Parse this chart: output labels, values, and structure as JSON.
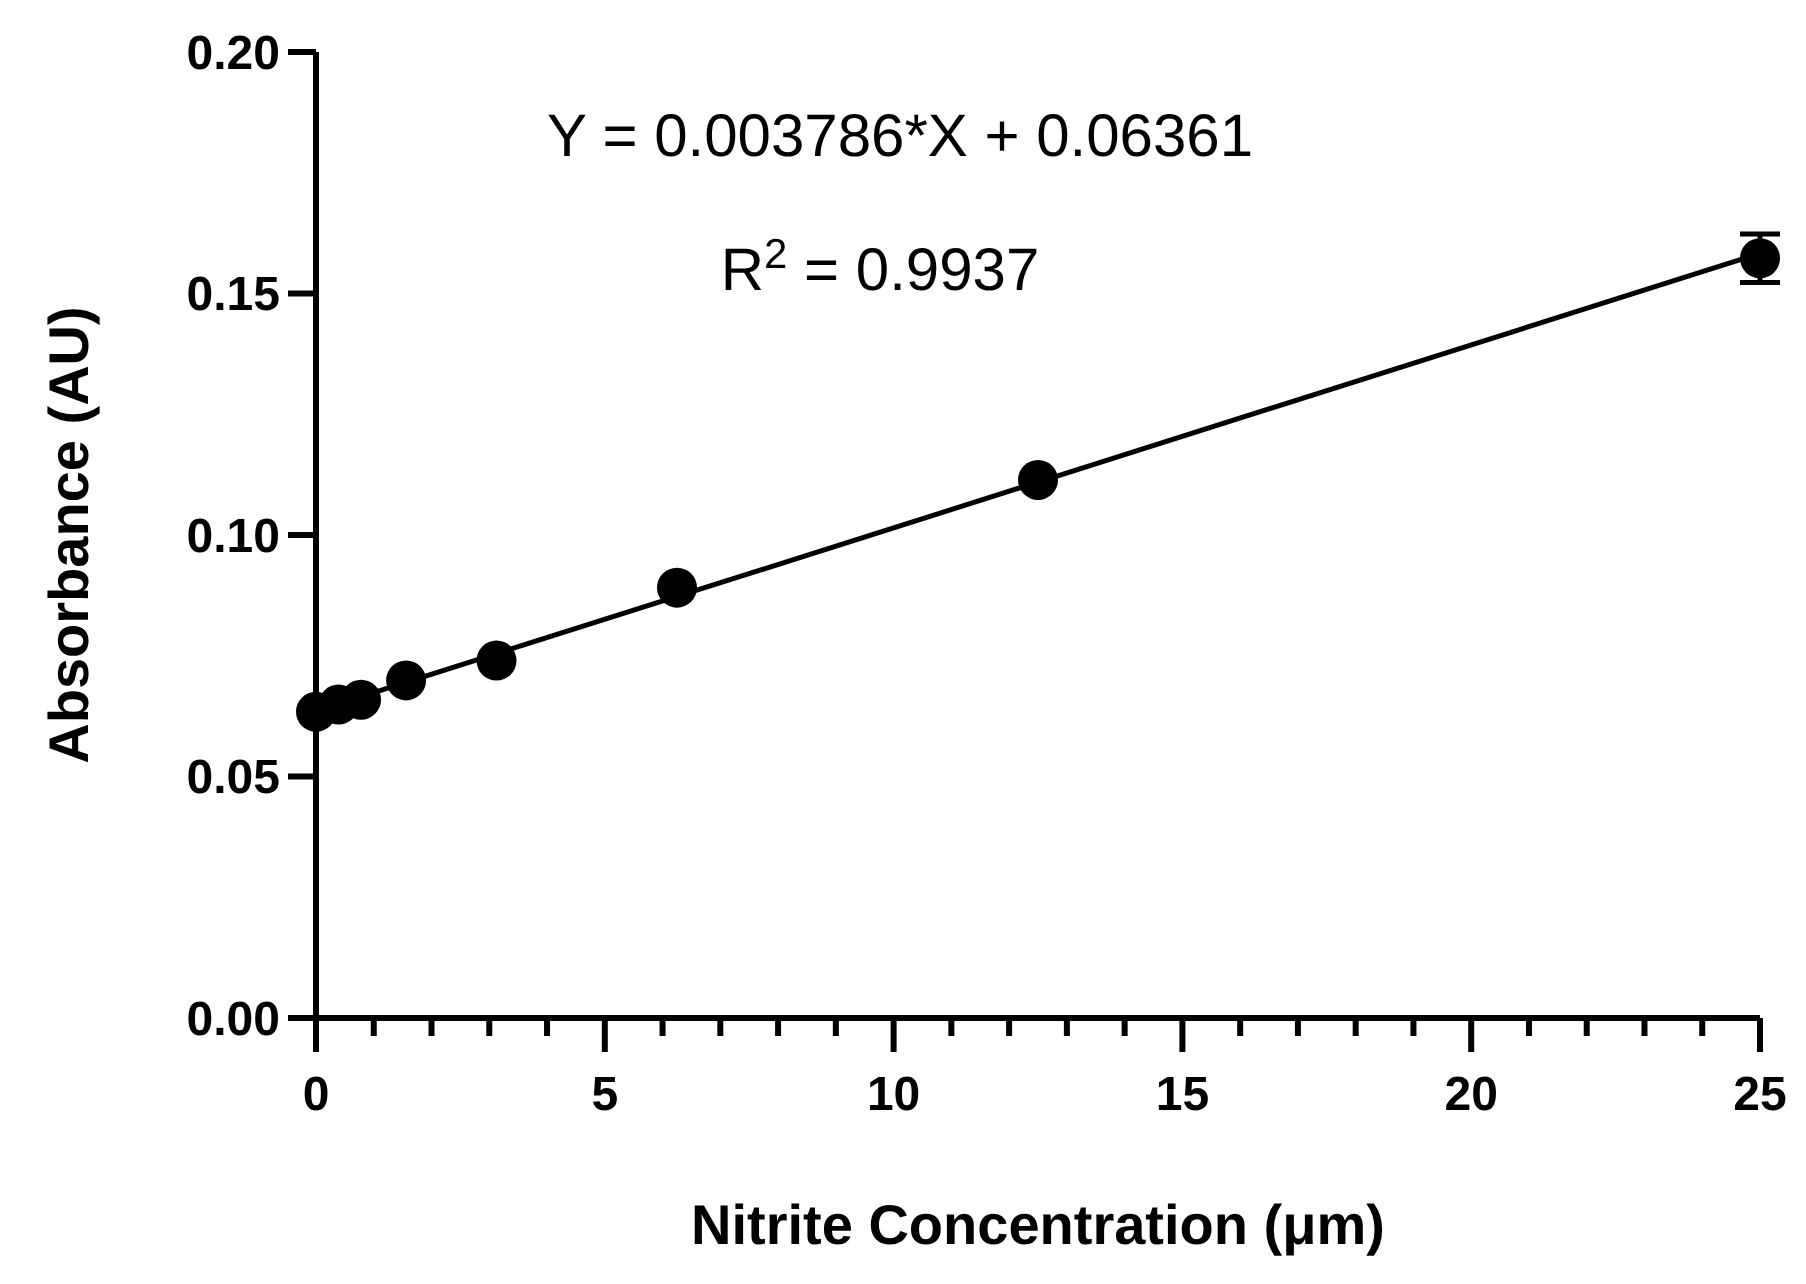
{
  "chart_data": {
    "type": "scatter",
    "xlabel": "Nitrite Concentration (μm)",
    "ylabel": "Absorbance (AU)",
    "annotations": [
      "Y = 0.003786*X + 0.06361",
      "R$^{2}$ = 0.9937"
    ],
    "xlim": [
      0,
      25
    ],
    "ylim": [
      0,
      0.2
    ],
    "xticks": [
      0,
      {
        "value": 1,
        "label": null
      },
      {
        "value": 2,
        "label": null
      },
      {
        "value": 3,
        "label": null
      },
      {
        "value": 4,
        "label": null
      },
      5,
      {
        "value": 6,
        "label": null
      },
      {
        "value": 7,
        "label": null
      },
      {
        "value": 8,
        "label": null
      },
      {
        "value": 9,
        "label": null
      },
      10,
      {
        "value": 11,
        "label": null
      },
      {
        "value": 12,
        "label": null
      },
      {
        "value": 13,
        "label": null
      },
      {
        "value": 14,
        "label": null
      },
      15,
      {
        "value": 16,
        "label": null
      },
      {
        "value": 17,
        "label": null
      },
      {
        "value": 18,
        "label": null
      },
      {
        "value": 19,
        "label": null
      },
      20,
      {
        "value": 21,
        "label": null
      },
      {
        "value": 22,
        "label": null
      },
      {
        "value": 23,
        "label": null
      },
      {
        "value": 24,
        "label": null
      },
      25
    ],
    "yticks": [
      {
        "value": 0,
        "label": "0.00"
      },
      {
        "value": 0.05,
        "label": "0.05"
      },
      {
        "value": 0.1,
        "label": "0.10"
      },
      {
        "value": 0.15,
        "label": "0.15"
      },
      {
        "value": 0.2,
        "label": "0.20"
      }
    ],
    "series": [
      {
        "type": "line",
        "color": "#000000",
        "x": [
          0,
          25
        ],
        "values": [
          0.0636,
          0.1583
        ],
        "marker": "none",
        "line_style": "solid"
      },
      {
        "color": "#000000",
        "x": [
          0,
          0.39,
          0.78,
          1.56,
          3.125,
          6.25,
          12.5,
          25
        ],
        "values": [
          0.0634,
          0.0649,
          0.0659,
          0.0699,
          0.074,
          0.0891,
          0.1114,
          0.1573
        ],
        "errors": [
          null,
          null,
          null,
          null,
          null,
          null,
          null,
          0.005
        ],
        "marker": "circle"
      }
    ]
  }
}
